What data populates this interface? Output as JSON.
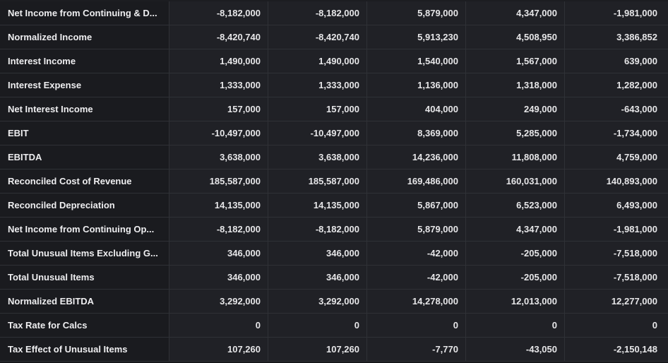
{
  "table": {
    "rows": [
      {
        "label": "Net Income from Continuing & D...",
        "values": [
          "-8,182,000",
          "-8,182,000",
          "5,879,000",
          "4,347,000",
          "-1,981,000"
        ]
      },
      {
        "label": "Normalized Income",
        "values": [
          "-8,420,740",
          "-8,420,740",
          "5,913,230",
          "4,508,950",
          "3,386,852"
        ]
      },
      {
        "label": "Interest Income",
        "values": [
          "1,490,000",
          "1,490,000",
          "1,540,000",
          "1,567,000",
          "639,000"
        ]
      },
      {
        "label": "Interest Expense",
        "values": [
          "1,333,000",
          "1,333,000",
          "1,136,000",
          "1,318,000",
          "1,282,000"
        ]
      },
      {
        "label": "Net Interest Income",
        "values": [
          "157,000",
          "157,000",
          "404,000",
          "249,000",
          "-643,000"
        ]
      },
      {
        "label": "EBIT",
        "values": [
          "-10,497,000",
          "-10,497,000",
          "8,369,000",
          "5,285,000",
          "-1,734,000"
        ]
      },
      {
        "label": "EBITDA",
        "values": [
          "3,638,000",
          "3,638,000",
          "14,236,000",
          "11,808,000",
          "4,759,000"
        ]
      },
      {
        "label": "Reconciled Cost of Revenue",
        "values": [
          "185,587,000",
          "185,587,000",
          "169,486,000",
          "160,031,000",
          "140,893,000"
        ]
      },
      {
        "label": "Reconciled Depreciation",
        "values": [
          "14,135,000",
          "14,135,000",
          "5,867,000",
          "6,523,000",
          "6,493,000"
        ]
      },
      {
        "label": "Net Income from Continuing Op...",
        "values": [
          "-8,182,000",
          "-8,182,000",
          "5,879,000",
          "4,347,000",
          "-1,981,000"
        ]
      },
      {
        "label": "Total Unusual Items Excluding G...",
        "values": [
          "346,000",
          "346,000",
          "-42,000",
          "-205,000",
          "-7,518,000"
        ]
      },
      {
        "label": "Total Unusual Items",
        "values": [
          "346,000",
          "346,000",
          "-42,000",
          "-205,000",
          "-7,518,000"
        ]
      },
      {
        "label": "Normalized EBITDA",
        "values": [
          "3,292,000",
          "3,292,000",
          "14,278,000",
          "12,013,000",
          "12,277,000"
        ]
      },
      {
        "label": "Tax Rate for Calcs",
        "values": [
          "0",
          "0",
          "0",
          "0",
          "0"
        ]
      },
      {
        "label": "Tax Effect of Unusual Items",
        "values": [
          "107,260",
          "107,260",
          "-7,770",
          "-43,050",
          "-2,150,148"
        ]
      }
    ]
  }
}
